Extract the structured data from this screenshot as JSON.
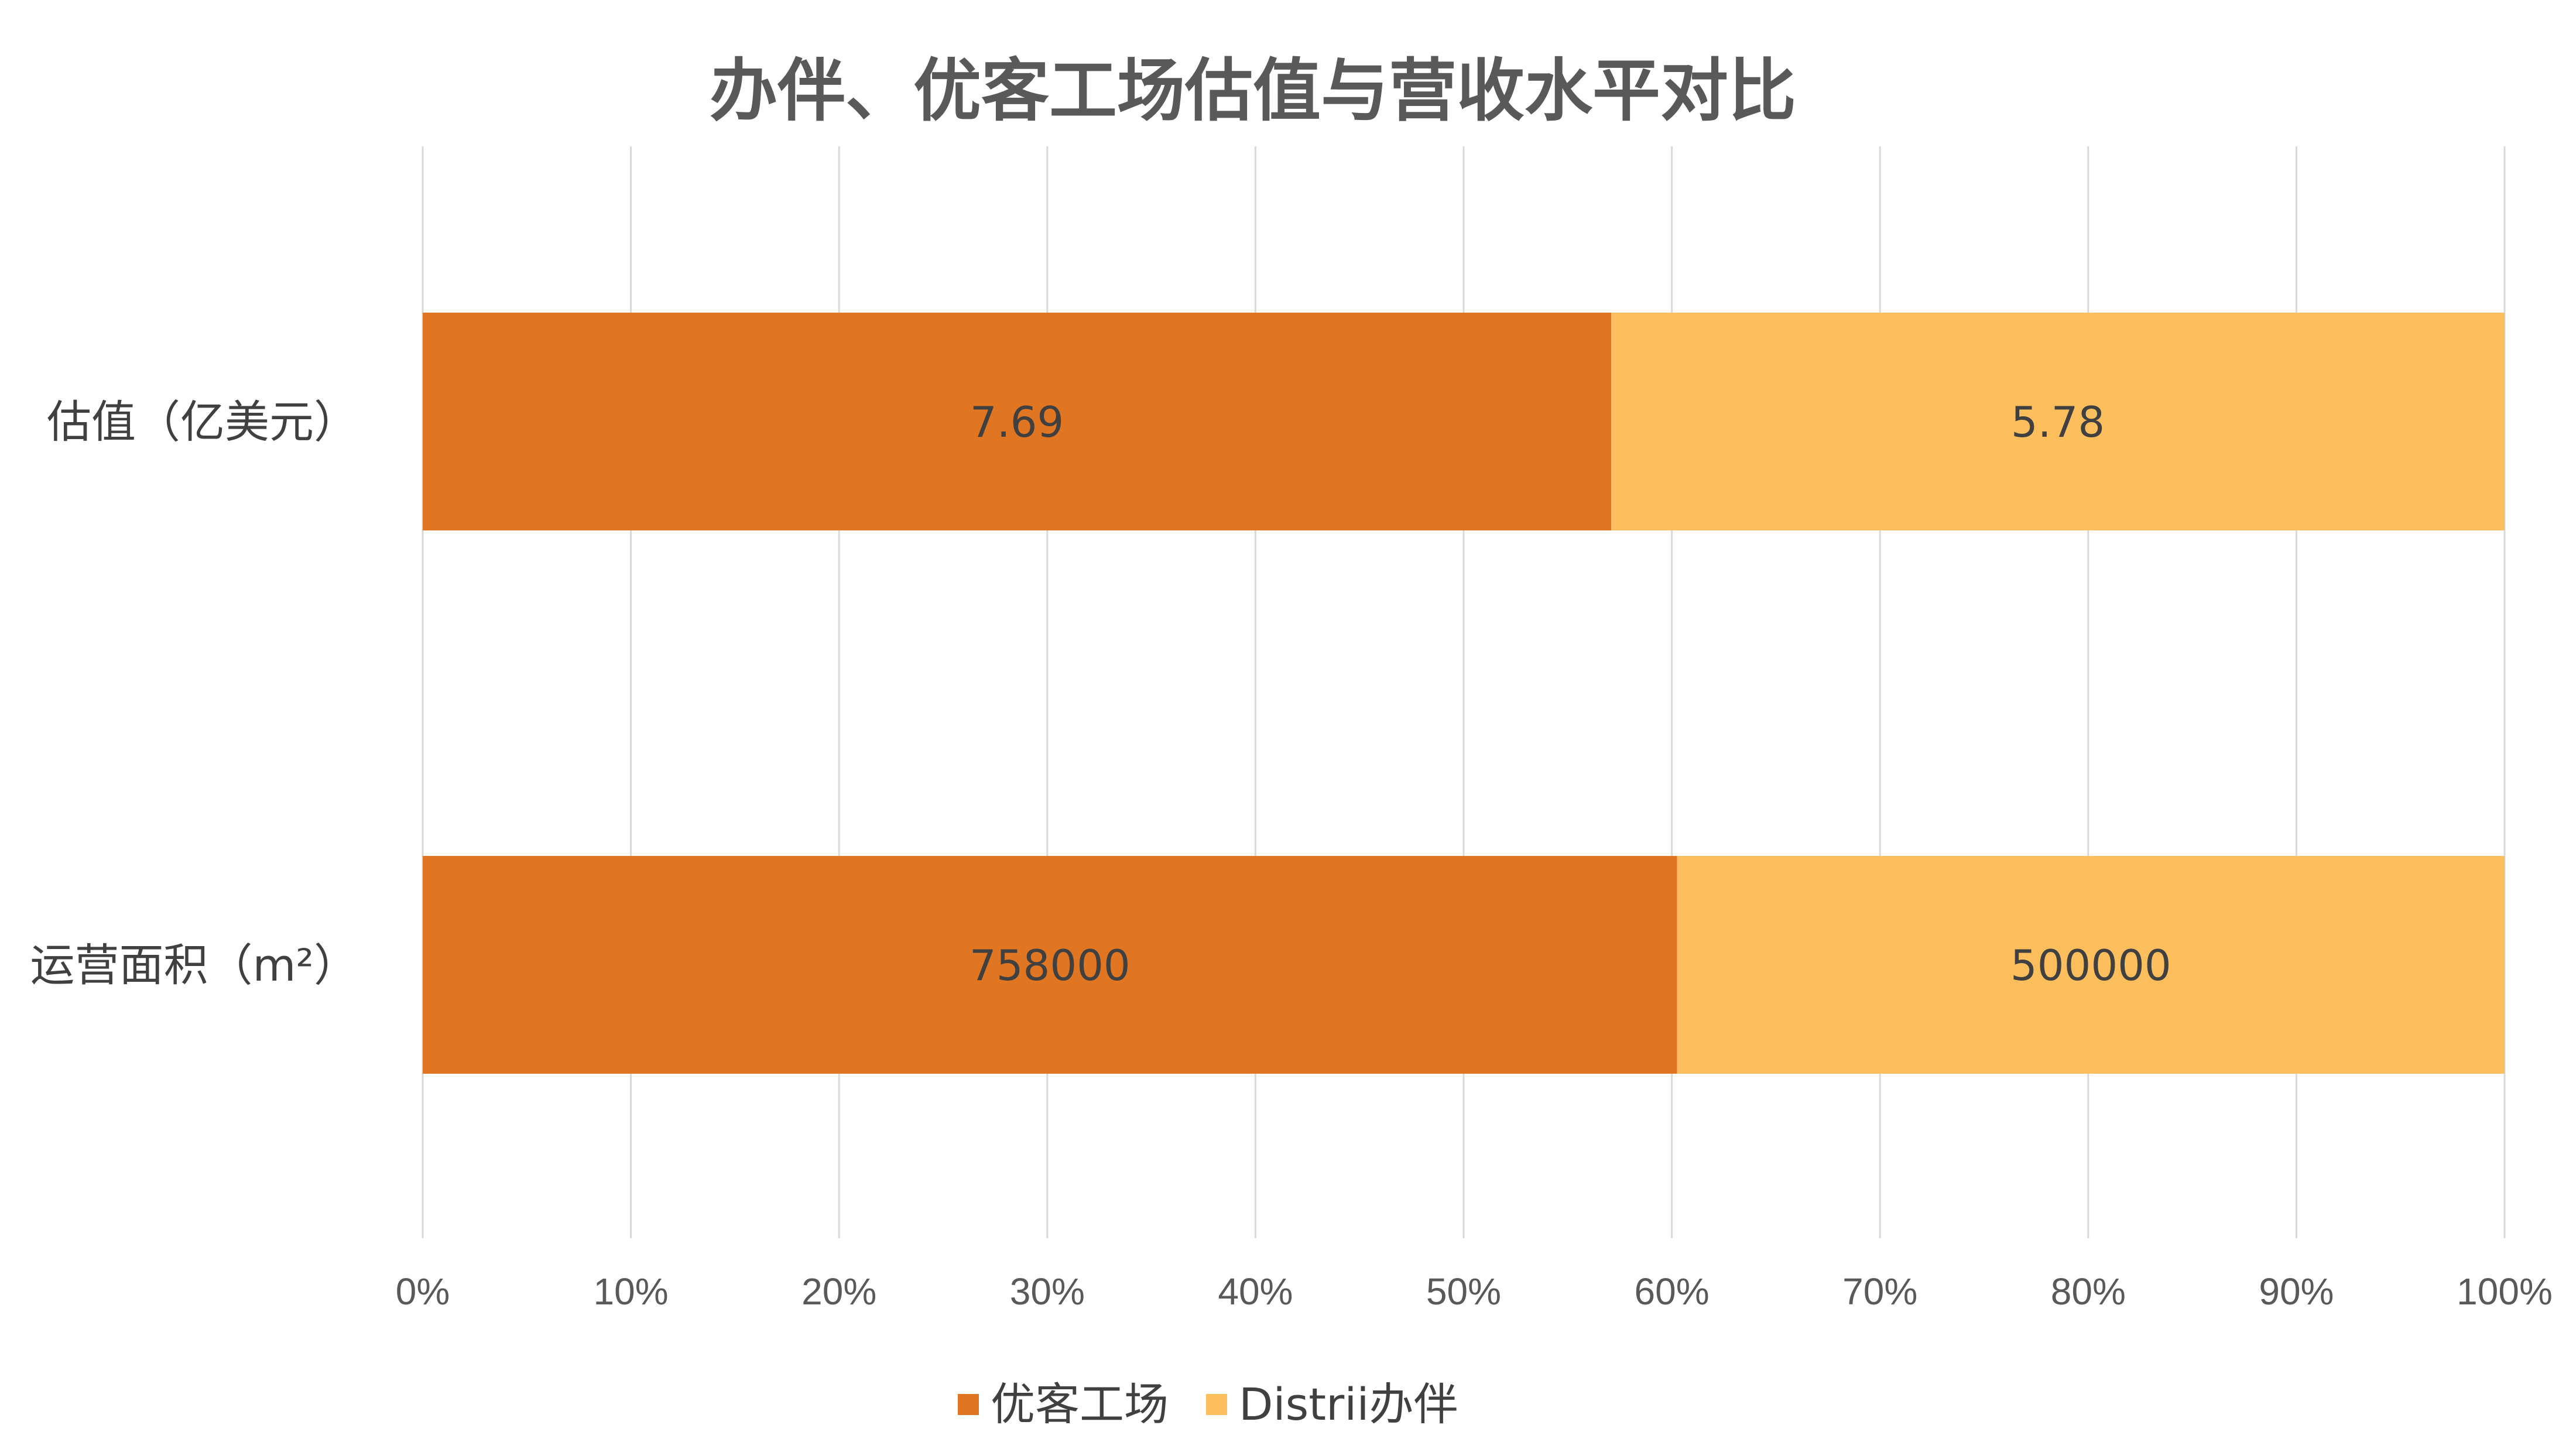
{
  "chart_data": {
    "type": "bar",
    "orientation": "horizontal",
    "stacking": "percent",
    "title": "办伴、优客工场估值与营收水平对比",
    "categories": [
      "估值（亿美元）",
      "运营面积（m²）"
    ],
    "series": [
      {
        "name": "优客工场",
        "values": [
          7.69,
          758000
        ],
        "value_labels": [
          "7.69",
          "758000"
        ],
        "color": "#E07622"
      },
      {
        "name": "Distrii办伴",
        "values": [
          5.78,
          500000
        ],
        "value_labels": [
          "5.78",
          "500000"
        ],
        "color": "#FDBF5E"
      }
    ],
    "xlim": [
      0,
      100
    ],
    "x_ticks": [
      "0%",
      "10%",
      "20%",
      "30%",
      "40%",
      "50%",
      "60%",
      "70%",
      "80%",
      "90%",
      "100%"
    ],
    "grid": true,
    "legend": "bottom",
    "xlabel": "",
    "ylabel": ""
  }
}
